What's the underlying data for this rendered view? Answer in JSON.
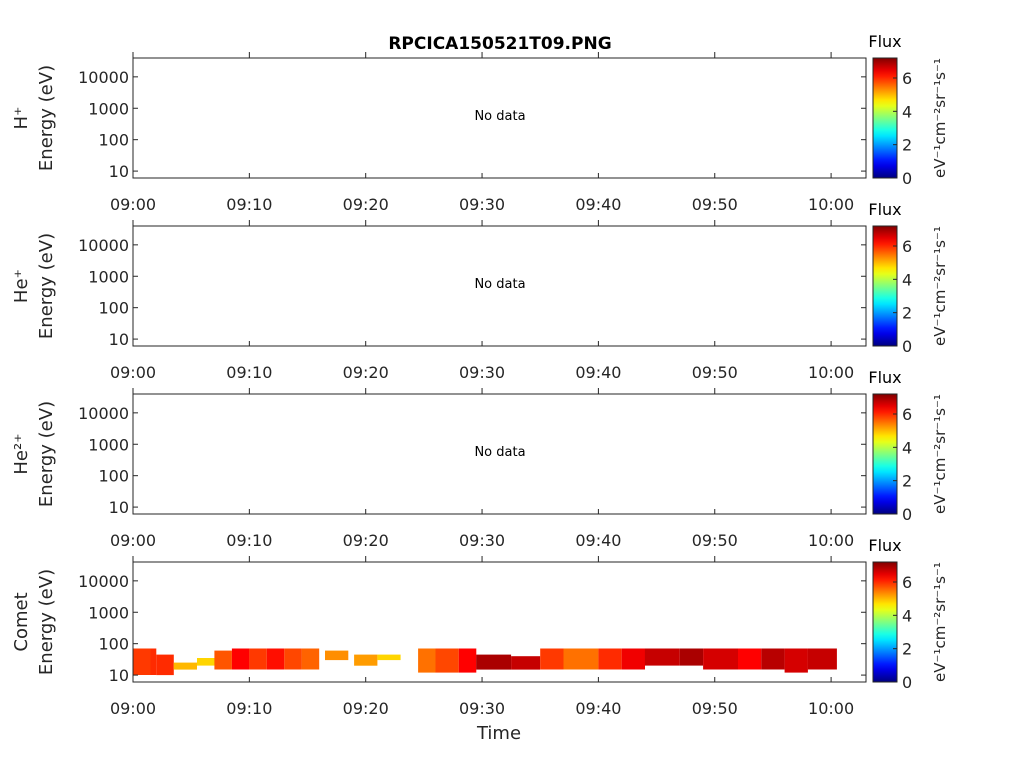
{
  "chart_data": {
    "title": "RPCICA150521T09.PNG",
    "xlabel": "Time",
    "xticks": [
      "09:00",
      "09:10",
      "09:20",
      "09:30",
      "09:40",
      "09:50",
      "10:00"
    ],
    "xlim_minutes": [
      0,
      63
    ],
    "yticks": [
      "10",
      "100",
      "1000",
      "10000"
    ],
    "ylim_log10": [
      0.78,
      4.6
    ],
    "colorbar": {
      "label": "Flux",
      "unit": "eV⁻¹cm⁻²sr⁻¹s⁻¹",
      "ticks": [
        "0",
        "2",
        "4",
        "6"
      ],
      "range": [
        0,
        7.2
      ],
      "colormap": "jet"
    },
    "panels": [
      {
        "type": "heatmap",
        "species": "H⁺",
        "ylabel": "Energy (eV)",
        "note": "No data",
        "blocks": []
      },
      {
        "type": "heatmap",
        "species": "He⁺",
        "ylabel": "Energy (eV)",
        "note": "No data",
        "blocks": []
      },
      {
        "type": "heatmap",
        "species": "He²⁺",
        "ylabel": "Energy (eV)",
        "note": "No data",
        "blocks": []
      },
      {
        "type": "heatmap",
        "species": "Comet",
        "ylabel": "Energy (eV)",
        "note": "",
        "blocks": [
          {
            "t": [
              0,
              1.5
            ],
            "e": [
              10,
              70
            ],
            "flux": 5.9
          },
          {
            "t": [
              1.5,
              2
            ],
            "e": [
              10,
              70
            ],
            "flux": 6.0
          },
          {
            "t": [
              2,
              3.5
            ],
            "e": [
              10,
              45
            ],
            "flux": 6.0
          },
          {
            "t": [
              3.5,
              5.5
            ],
            "e": [
              15,
              25
            ],
            "flux": 5.0
          },
          {
            "t": [
              5.5,
              7
            ],
            "e": [
              20,
              35
            ],
            "flux": 4.8
          },
          {
            "t": [
              7,
              8.5
            ],
            "e": [
              15,
              60
            ],
            "flux": 5.7
          },
          {
            "t": [
              8.5,
              10
            ],
            "e": [
              15,
              70
            ],
            "flux": 6.3
          },
          {
            "t": [
              10,
              11.5
            ],
            "e": [
              15,
              70
            ],
            "flux": 5.9
          },
          {
            "t": [
              11.5,
              13
            ],
            "e": [
              15,
              70
            ],
            "flux": 6.2
          },
          {
            "t": [
              13,
              14.5
            ],
            "e": [
              15,
              70
            ],
            "flux": 5.8
          },
          {
            "t": [
              14.5,
              16
            ],
            "e": [
              15,
              70
            ],
            "flux": 5.6
          },
          {
            "t": [
              16.5,
              18.5
            ],
            "e": [
              30,
              60
            ],
            "flux": 5.3
          },
          {
            "t": [
              19,
              21
            ],
            "e": [
              20,
              45
            ],
            "flux": 5.2
          },
          {
            "t": [
              21,
              23
            ],
            "e": [
              30,
              45
            ],
            "flux": 4.8
          },
          {
            "t": [
              24.5,
              26
            ],
            "e": [
              12,
              70
            ],
            "flux": 5.5
          },
          {
            "t": [
              26,
              28
            ],
            "e": [
              12,
              70
            ],
            "flux": 5.8
          },
          {
            "t": [
              28,
              29.5
            ],
            "e": [
              12,
              70
            ],
            "flux": 6.3
          },
          {
            "t": [
              29.5,
              32.5
            ],
            "e": [
              15,
              45
            ],
            "flux": 6.9
          },
          {
            "t": [
              32.5,
              35
            ],
            "e": [
              15,
              40
            ],
            "flux": 6.7
          },
          {
            "t": [
              35,
              37
            ],
            "e": [
              15,
              70
            ],
            "flux": 5.9
          },
          {
            "t": [
              37,
              40
            ],
            "e": [
              15,
              70
            ],
            "flux": 5.5
          },
          {
            "t": [
              40,
              42
            ],
            "e": [
              15,
              70
            ],
            "flux": 6.0
          },
          {
            "t": [
              42,
              44
            ],
            "e": [
              15,
              70
            ],
            "flux": 6.4
          },
          {
            "t": [
              44,
              47
            ],
            "e": [
              20,
              70
            ],
            "flux": 6.7
          },
          {
            "t": [
              47,
              49
            ],
            "e": [
              20,
              70
            ],
            "flux": 6.9
          },
          {
            "t": [
              49,
              52
            ],
            "e": [
              15,
              70
            ],
            "flux": 6.6
          },
          {
            "t": [
              52,
              54
            ],
            "e": [
              15,
              70
            ],
            "flux": 6.3
          },
          {
            "t": [
              54,
              56
            ],
            "e": [
              15,
              70
            ],
            "flux": 6.8
          },
          {
            "t": [
              56,
              58
            ],
            "e": [
              12,
              70
            ],
            "flux": 6.6
          },
          {
            "t": [
              58,
              60.5
            ],
            "e": [
              15,
              70
            ],
            "flux": 6.7
          }
        ]
      }
    ]
  }
}
